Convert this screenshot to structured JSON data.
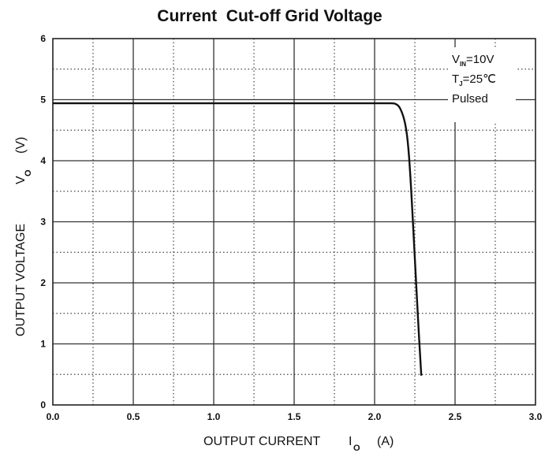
{
  "chart_data": {
    "type": "line",
    "title": "Current  Cut-off Grid Voltage",
    "xlabel": {
      "text": "OUTPUT CURRENT",
      "symbol": "I",
      "subscript": "O",
      "unit": "(A)"
    },
    "ylabel": {
      "text": "OUTPUT VOLTAGE",
      "symbol": "V",
      "subscript": "O",
      "unit": "(V)"
    },
    "xlim": [
      0,
      3
    ],
    "ylim": [
      0,
      6
    ],
    "x_ticks": [
      "0.0",
      "0.5",
      "1.0",
      "1.5",
      "2.0",
      "2.5",
      "3.0"
    ],
    "y_ticks": [
      "0",
      "1",
      "2",
      "3",
      "4",
      "5",
      "6"
    ],
    "grid": "major solid, minor dotted",
    "conditions": [
      {
        "symbol": "V",
        "subscript": "IN",
        "value": "=10V"
      },
      {
        "symbol": "T",
        "subscript": "J",
        "value": "=25℃"
      },
      {
        "symbol": "",
        "subscript": "",
        "value": "Pulsed"
      }
    ],
    "series": [
      {
        "x": [
          0,
          0.5,
          1.0,
          1.5,
          2.0,
          2.1,
          2.13,
          2.16,
          2.19,
          2.21,
          2.23,
          2.25,
          2.27,
          2.29
        ],
        "y": [
          4.94,
          4.94,
          4.94,
          4.94,
          4.94,
          4.94,
          4.93,
          4.85,
          4.6,
          4.2,
          3.4,
          2.4,
          1.4,
          0.48
        ]
      }
    ]
  }
}
